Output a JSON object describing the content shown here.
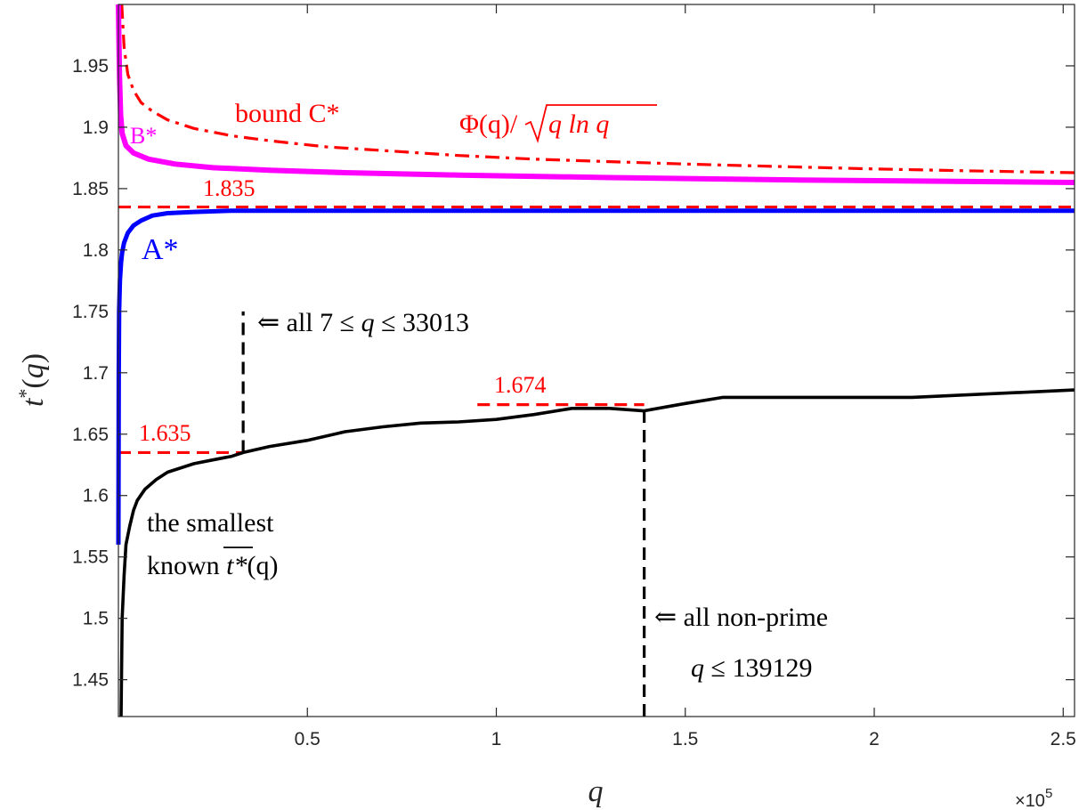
{
  "chart_data": {
    "type": "line",
    "title": "",
    "xlabel": "q",
    "ylabel": "t*(q)",
    "x_exponent_label": "×10",
    "x_exponent": "5",
    "xlim": [
      0,
      253000
    ],
    "ylim": [
      1.42,
      2.0
    ],
    "grid": false,
    "x_ticks": [
      {
        "value": 50000,
        "label": "0.5"
      },
      {
        "value": 100000,
        "label": "1"
      },
      {
        "value": 150000,
        "label": "1.5"
      },
      {
        "value": 200000,
        "label": "2"
      },
      {
        "value": 250000,
        "label": "2.5"
      }
    ],
    "y_ticks": [
      {
        "value": 1.45,
        "label": "1.45"
      },
      {
        "value": 1.5,
        "label": "1.5"
      },
      {
        "value": 1.55,
        "label": "1.55"
      },
      {
        "value": 1.6,
        "label": "1.6"
      },
      {
        "value": 1.65,
        "label": "1.65"
      },
      {
        "value": 1.7,
        "label": "1.7"
      },
      {
        "value": 1.75,
        "label": "1.75"
      },
      {
        "value": 1.8,
        "label": "1.8"
      },
      {
        "value": 1.85,
        "label": "1.85"
      },
      {
        "value": 1.9,
        "label": "1.9"
      },
      {
        "value": 1.95,
        "label": "1.95"
      }
    ],
    "series": [
      {
        "name": "bound C*",
        "color": "#ff0000",
        "style": "dashdot",
        "x": [
          900,
          1500,
          2500,
          4000,
          6000,
          9000,
          13000,
          20000,
          30000,
          40000,
          55000,
          70000,
          90000,
          110000,
          130000,
          150000,
          175000,
          200000,
          225000,
          253000
        ],
        "y": [
          2.0,
          1.965,
          1.943,
          1.93,
          1.92,
          1.913,
          1.906,
          1.899,
          1.893,
          1.889,
          1.884,
          1.881,
          1.877,
          1.874,
          1.872,
          1.87,
          1.868,
          1.866,
          1.8645,
          1.863
        ]
      },
      {
        "name": "B*",
        "color": "#ff00ff",
        "style": "solid",
        "x": [
          0,
          150,
          300,
          600,
          1000,
          2000,
          4000,
          8000,
          15000,
          25000,
          40000,
          60000,
          90000,
          130000,
          180000,
          253000
        ],
        "y": [
          2.0,
          1.97,
          1.94,
          1.91,
          1.895,
          1.885,
          1.879,
          1.874,
          1.87,
          1.867,
          1.865,
          1.863,
          1.861,
          1.859,
          1.857,
          1.855
        ]
      },
      {
        "name": "A*",
        "color": "#0000ff",
        "style": "solid",
        "x": [
          0,
          100,
          200,
          400,
          700,
          1000,
          1500,
          2500,
          4000,
          6000,
          9000,
          13000,
          20000,
          30000,
          50000,
          80000,
          120000,
          180000,
          253000
        ],
        "y": [
          1.56,
          1.7,
          1.75,
          1.775,
          1.79,
          1.798,
          1.806,
          1.814,
          1.82,
          1.824,
          1.828,
          1.83,
          1.831,
          1.832,
          1.832,
          1.832,
          1.832,
          1.832,
          1.832
        ]
      },
      {
        "name": "the smallest known t*(q)",
        "color": "#000000",
        "style": "solid",
        "x": [
          700,
          1000,
          1500,
          2000,
          3000,
          4000,
          5000,
          7000,
          10000,
          13000,
          16000,
          20000,
          25000,
          30000,
          33000,
          40000,
          50000,
          60000,
          70000,
          80000,
          90000,
          100000,
          110000,
          120000,
          130000,
          139000,
          150000,
          160000,
          180000,
          210000,
          253000
        ],
        "y": [
          1.42,
          1.5,
          1.535,
          1.56,
          1.575,
          1.588,
          1.596,
          1.605,
          1.613,
          1.619,
          1.622,
          1.626,
          1.629,
          1.632,
          1.635,
          1.64,
          1.645,
          1.652,
          1.656,
          1.659,
          1.66,
          1.662,
          1.666,
          1.671,
          1.671,
          1.669,
          1.675,
          1.68,
          1.68,
          1.68,
          1.686
        ]
      }
    ],
    "reference_lines": [
      {
        "color": "#ff0000",
        "style": "dashed",
        "x": [
          0,
          253000
        ],
        "y": [
          1.835,
          1.835
        ]
      },
      {
        "color": "#ff0000",
        "style": "dashed",
        "x": [
          0,
          33013
        ],
        "y": [
          1.635,
          1.635
        ]
      },
      {
        "color": "#ff0000",
        "style": "dashed",
        "x": [
          95000,
          139129
        ],
        "y": [
          1.674,
          1.674
        ]
      },
      {
        "color": "#000000",
        "style": "dashed",
        "x": [
          33013,
          33013
        ],
        "y": [
          1.635,
          1.75
        ]
      },
      {
        "color": "#000000",
        "style": "dashed",
        "x": [
          139129,
          139129
        ],
        "y": [
          1.42,
          1.674
        ]
      }
    ],
    "annotations": {
      "bound_c": "bound C*",
      "phi_q": "Φ(q)/",
      "phi_sqrt_arg": "q ln q",
      "b_star": "B*",
      "a_star": "A*",
      "v1835": "1.835",
      "v1635": "1.635",
      "v1674": "1.674",
      "all_range_prefix": "⇐ all 7 ≤ ",
      "all_range_q": "q",
      "all_range_suffix": " ≤ 33013",
      "smallest_line1": "the smallest",
      "smallest_line2_prefix": "known ",
      "smallest_line2_t": "t*",
      "smallest_line2_suffix": "(q)",
      "nonprime_line1": "⇐ all non-prime",
      "nonprime_line2_q": "q",
      "nonprime_line2_suffix": " ≤ 139129"
    }
  }
}
